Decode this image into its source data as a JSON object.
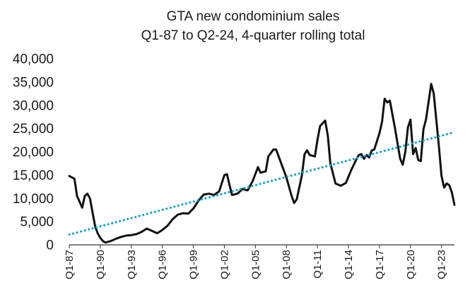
{
  "chart_data": {
    "type": "line",
    "title": "GTA new condominium sales",
    "subtitle": "Q1-87 to Q2-24, 4-quarter rolling total",
    "xlabel": "",
    "ylabel": "",
    "ylim": [
      0,
      40000
    ],
    "yticks": [
      "0",
      "5,000",
      "10,000",
      "15,000",
      "20,000",
      "25,000",
      "30,000",
      "35,000",
      "40,000"
    ],
    "xticks": [
      "Q1-87",
      "Q1-90",
      "Q1-93",
      "Q1-96",
      "Q1-99",
      "Q1-02",
      "Q1-05",
      "Q1-08",
      "Q1-11",
      "Q1-14",
      "Q1-17",
      "Q1-20",
      "Q1-23"
    ],
    "grid": false,
    "legend": "none",
    "series": [
      {
        "style": "solid",
        "color": "#111111",
        "points": [
          [
            "Q1-87",
            14800
          ],
          [
            "Q3-87",
            14200
          ],
          [
            "Q4-87",
            10500
          ],
          [
            "Q2-88",
            8000
          ],
          [
            "Q3-88",
            10500
          ],
          [
            "Q4-88",
            11000
          ],
          [
            "Q1-89",
            10000
          ],
          [
            "Q2-89",
            7000
          ],
          [
            "Q3-89",
            4000
          ],
          [
            "Q4-89",
            2500
          ],
          [
            "Q1-90",
            1500
          ],
          [
            "Q2-90",
            800
          ],
          [
            "Q3-90",
            500
          ],
          [
            "Q1-91",
            800
          ],
          [
            "Q3-91",
            1300
          ],
          [
            "Q1-92",
            1700
          ],
          [
            "Q3-92",
            2000
          ],
          [
            "Q1-93",
            2100
          ],
          [
            "Q3-93",
            2300
          ],
          [
            "Q1-94",
            2800
          ],
          [
            "Q3-94",
            3500
          ],
          [
            "Q1-95",
            3000
          ],
          [
            "Q3-95",
            2500
          ],
          [
            "Q1-96",
            3200
          ],
          [
            "Q3-96",
            4100
          ],
          [
            "Q1-97",
            5500
          ],
          [
            "Q3-97",
            6500
          ],
          [
            "Q1-98",
            6800
          ],
          [
            "Q3-98",
            6700
          ],
          [
            "Q1-99",
            7800
          ],
          [
            "Q3-99",
            9500
          ],
          [
            "Q1-00",
            10800
          ],
          [
            "Q3-00",
            11000
          ],
          [
            "Q1-01",
            10700
          ],
          [
            "Q3-01",
            11500
          ],
          [
            "Q1-02",
            15000
          ],
          [
            "Q2-02",
            15200
          ],
          [
            "Q3-02",
            12800
          ],
          [
            "Q4-02",
            10700
          ],
          [
            "Q2-03",
            11000
          ],
          [
            "Q4-03",
            12000
          ],
          [
            "Q2-04",
            11700
          ],
          [
            "Q4-04",
            13800
          ],
          [
            "Q2-05",
            16700
          ],
          [
            "Q3-05",
            15500
          ],
          [
            "Q1-06",
            15800
          ],
          [
            "Q2-06",
            19000
          ],
          [
            "Q4-06",
            20500
          ],
          [
            "Q1-07",
            20500
          ],
          [
            "Q3-07",
            17500
          ],
          [
            "Q1-08",
            14500
          ],
          [
            "Q3-08",
            10500
          ],
          [
            "Q4-08",
            9000
          ],
          [
            "Q1-09",
            9800
          ],
          [
            "Q3-09",
            15000
          ],
          [
            "Q4-09",
            19500
          ],
          [
            "Q1-10",
            20300
          ],
          [
            "Q2-10",
            19300
          ],
          [
            "Q4-10",
            19000
          ],
          [
            "Q1-11",
            22500
          ],
          [
            "Q2-11",
            25500
          ],
          [
            "Q4-11",
            26700
          ],
          [
            "Q1-12",
            23500
          ],
          [
            "Q2-12",
            17500
          ],
          [
            "Q4-12",
            13200
          ],
          [
            "Q2-13",
            12700
          ],
          [
            "Q4-13",
            13300
          ],
          [
            "Q2-14",
            16000
          ],
          [
            "Q4-14",
            18300
          ],
          [
            "Q1-15",
            19300
          ],
          [
            "Q2-15",
            19500
          ],
          [
            "Q3-15",
            18500
          ],
          [
            "Q4-15",
            19300
          ],
          [
            "Q1-16",
            18800
          ],
          [
            "Q2-16",
            20300
          ],
          [
            "Q3-16",
            20500
          ],
          [
            "Q1-17",
            24000
          ],
          [
            "Q2-17",
            26500
          ],
          [
            "Q3-17",
            31400
          ],
          [
            "Q4-17",
            30600
          ],
          [
            "Q1-18",
            31000
          ],
          [
            "Q3-18",
            25000
          ],
          [
            "Q1-19",
            18500
          ],
          [
            "Q2-19",
            17200
          ],
          [
            "Q3-19",
            20000
          ],
          [
            "Q4-19",
            25300
          ],
          [
            "Q1-20",
            26900
          ],
          [
            "Q2-20",
            19500
          ],
          [
            "Q3-20",
            20800
          ],
          [
            "Q4-20",
            18200
          ],
          [
            "Q1-21",
            18000
          ],
          [
            "Q2-21",
            24800
          ],
          [
            "Q3-21",
            27000
          ],
          [
            "Q1-22",
            34600
          ],
          [
            "Q2-22",
            32500
          ],
          [
            "Q4-22",
            21000
          ],
          [
            "Q1-23",
            14800
          ],
          [
            "Q2-23",
            12300
          ],
          [
            "Q3-23",
            13200
          ],
          [
            "Q4-23",
            12800
          ],
          [
            "Q1-24",
            11300
          ],
          [
            "Q2-24",
            8600
          ]
        ]
      },
      {
        "style": "dotted",
        "color": "#1aa3cc",
        "points": [
          [
            "Q1-87",
            2200
          ],
          [
            "Q2-24",
            24200
          ]
        ]
      }
    ]
  }
}
